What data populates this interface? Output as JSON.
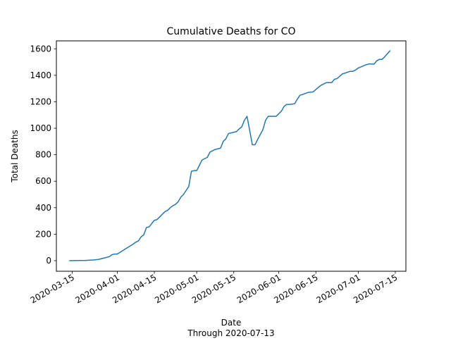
{
  "chart_data": {
    "type": "line",
    "title": "Cumulative Deaths for CO",
    "xlabel": "Date",
    "xlabel_sub": "Through 2020-07-13",
    "ylabel": "Total Deaths",
    "x_tick_labels": [
      "2020-03-15",
      "2020-04-01",
      "2020-04-15",
      "2020-05-01",
      "2020-05-15",
      "2020-06-01",
      "2020-06-15",
      "2020-07-01",
      "2020-07-15"
    ],
    "y_ticks": [
      0,
      200,
      400,
      600,
      800,
      1000,
      1200,
      1400,
      1600
    ],
    "xlim": [
      "2020-03-09",
      "2020-07-19"
    ],
    "ylim": [
      -80,
      1660
    ],
    "line_color": "#1f77b4",
    "grid": false,
    "legend": "none",
    "series": [
      {
        "x": [
          "2020-03-14",
          "2020-03-17",
          "2020-03-20",
          "2020-03-23",
          "2020-03-25",
          "2020-03-27",
          "2020-03-29",
          "2020-03-30",
          "2020-03-31",
          "2020-04-01",
          "2020-04-03",
          "2020-04-05",
          "2020-04-07",
          "2020-04-08",
          "2020-04-09",
          "2020-04-10",
          "2020-04-11",
          "2020-04-12",
          "2020-04-13",
          "2020-04-14",
          "2020-04-15",
          "2020-04-16",
          "2020-04-18",
          "2020-04-19",
          "2020-04-20",
          "2020-04-21",
          "2020-04-22",
          "2020-04-23",
          "2020-04-24",
          "2020-04-25",
          "2020-04-26",
          "2020-04-28",
          "2020-04-29",
          "2020-04-30",
          "2020-05-01",
          "2020-05-03",
          "2020-05-04",
          "2020-05-05",
          "2020-05-06",
          "2020-05-07",
          "2020-05-08",
          "2020-05-10",
          "2020-05-11",
          "2020-05-12",
          "2020-05-13",
          "2020-05-14",
          "2020-05-16",
          "2020-05-17",
          "2020-05-18",
          "2020-05-19",
          "2020-05-20",
          "2020-05-21",
          "2020-05-22",
          "2020-05-23",
          "2020-05-24",
          "2020-05-26",
          "2020-05-27",
          "2020-05-28",
          "2020-05-31",
          "2020-06-01",
          "2020-06-02",
          "2020-06-03",
          "2020-06-04",
          "2020-06-05",
          "2020-06-07",
          "2020-06-08",
          "2020-06-09",
          "2020-06-10",
          "2020-06-12",
          "2020-06-14",
          "2020-06-16",
          "2020-06-17",
          "2020-06-18",
          "2020-06-19",
          "2020-06-21",
          "2020-06-22",
          "2020-06-23",
          "2020-06-25",
          "2020-06-28",
          "2020-06-29",
          "2020-06-30",
          "2020-07-01",
          "2020-07-04",
          "2020-07-05",
          "2020-07-07",
          "2020-07-08",
          "2020-07-09",
          "2020-07-10",
          "2020-07-11",
          "2020-07-13"
        ],
        "values": [
          0,
          1,
          2,
          5,
          10,
          20,
          30,
          45,
          50,
          50,
          75,
          100,
          125,
          140,
          150,
          180,
          195,
          250,
          255,
          280,
          305,
          310,
          350,
          370,
          380,
          400,
          415,
          425,
          445,
          480,
          500,
          560,
          675,
          680,
          680,
          760,
          770,
          780,
          820,
          830,
          840,
          850,
          900,
          920,
          960,
          965,
          975,
          995,
          1010,
          1060,
          1090,
          985,
          875,
          875,
          915,
          990,
          1060,
          1090,
          1090,
          1110,
          1130,
          1165,
          1180,
          1180,
          1185,
          1220,
          1250,
          1255,
          1270,
          1275,
          1310,
          1325,
          1335,
          1345,
          1345,
          1370,
          1375,
          1410,
          1430,
          1430,
          1440,
          1455,
          1480,
          1485,
          1485,
          1510,
          1520,
          1520,
          1540,
          1585
        ]
      }
    ]
  }
}
